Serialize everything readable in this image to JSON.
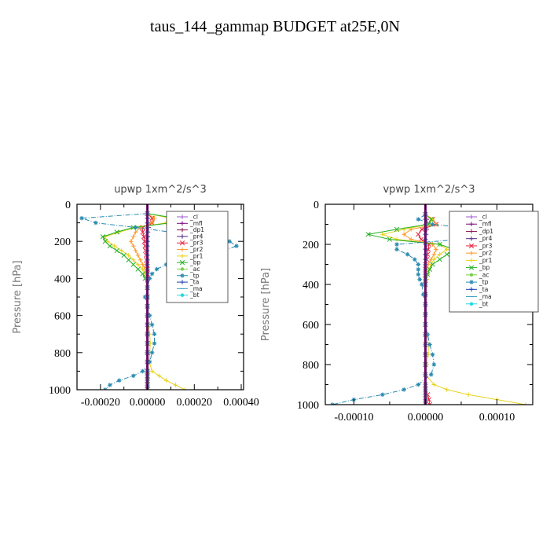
{
  "figure": {
    "title": "taus_144_gammap  BUDGET at25E,0N"
  },
  "chart_data": [
    {
      "type": "line",
      "title": "upwp   1xm^2/s^3",
      "ylabel": "Pressure [hPa]",
      "xlim": [
        -0.0003,
        0.00041
      ],
      "ylim": [
        1000,
        0
      ],
      "xticks": [
        "-0.00020",
        "0.00000",
        "0.00020",
        "0.00040"
      ],
      "xtick_values": [
        -0.0002,
        0,
        0.0002,
        0.0004
      ],
      "yticks": [
        "0",
        "200",
        "400",
        "600",
        "800",
        "1000"
      ],
      "ytick_values": [
        0,
        200,
        400,
        600,
        800,
        1000
      ],
      "legend_position": "top-right",
      "y": [
        50,
        75,
        100,
        125,
        150,
        175,
        200,
        225,
        250,
        275,
        300,
        325,
        350,
        375,
        400,
        450,
        500,
        550,
        600,
        650,
        700,
        750,
        800,
        850,
        900,
        925,
        950,
        975,
        1000
      ],
      "series": [
        {
          "name": "_cl",
          "color": "#9b59d0",
          "marker": "+",
          "values": [
            0,
            0,
            0,
            0,
            0,
            0,
            0,
            0,
            0,
            0,
            0,
            0,
            0,
            0,
            0,
            0,
            0,
            0,
            0,
            0,
            0,
            0,
            0,
            0,
            0,
            0,
            0,
            0,
            0
          ]
        },
        {
          "name": "_mfl",
          "color": "#7a1080",
          "marker": "+",
          "values": [
            0,
            0,
            0,
            0,
            0,
            0,
            0,
            0,
            0,
            0,
            0,
            0,
            0,
            0,
            0,
            0,
            0,
            0,
            0,
            0,
            0,
            0,
            0,
            0,
            0,
            0,
            0,
            0,
            0
          ]
        },
        {
          "name": "_dp1",
          "color": "#8b1a50",
          "marker": "+",
          "values": [
            0,
            2e-06,
            4e-06,
            5e-06,
            3e-06,
            2e-06,
            1e-06,
            0,
            0,
            0,
            0,
            0,
            0,
            0,
            0,
            0,
            0,
            0,
            0,
            0,
            0,
            0,
            0,
            0,
            0,
            0,
            0,
            0,
            0
          ]
        },
        {
          "name": "_pr4",
          "color": "#5a2a8a",
          "marker": "+",
          "values": [
            0,
            0,
            0,
            0,
            0,
            0,
            0,
            0,
            0,
            0,
            0,
            0,
            0,
            0,
            0,
            0,
            0,
            0,
            0,
            0,
            0,
            0,
            0,
            0,
            0,
            0,
            0,
            0,
            0
          ]
        },
        {
          "name": "_pr3",
          "color": "#e8233a",
          "marker": "x",
          "values": [
            0,
            2e-05,
            2e-05,
            -2e-05,
            -2e-05,
            -1.5e-05,
            -1.2e-05,
            -1e-05,
            -8e-06,
            -5e-06,
            -3e-06,
            -2e-06,
            0,
            0,
            0,
            0,
            0,
            0,
            0,
            0,
            0,
            0,
            0,
            0,
            0,
            0,
            0,
            0,
            0
          ]
        },
        {
          "name": "_pr2",
          "color": "#ff9a2a",
          "marker": "+",
          "values": [
            0,
            3e-05,
            2e-05,
            -3e-05,
            -5e-05,
            -6e-05,
            -7e-05,
            -6e-05,
            -5e-05,
            -4e-05,
            -3e-05,
            -2e-05,
            -1e-05,
            0,
            0,
            0,
            0,
            0,
            0,
            0,
            0,
            0,
            0,
            0,
            0,
            0,
            0,
            0,
            0
          ]
        },
        {
          "name": "_pr1",
          "color": "#e8d21a",
          "marker": "+",
          "values": [
            0,
            0.0001,
            8e-05,
            -5e-05,
            -0.00012,
            -0.00018,
            -0.00017,
            -0.00014,
            -0.00011,
            -8e-05,
            -6e-05,
            -4e-05,
            -2e-05,
            -1e-05,
            0,
            0,
            0,
            0,
            0,
            5e-06,
            1e-05,
            1.2e-05,
            1e-05,
            8e-06,
            2e-05,
            5e-05,
            8e-05,
            0.00012,
            0.00016
          ]
        },
        {
          "name": "_bp",
          "color": "#22b022",
          "marker": "x",
          "values": [
            0,
            0.00012,
            0.0001,
            -6e-05,
            -0.00013,
            -0.00019,
            -0.00018,
            -0.00016,
            -0.00013,
            -0.0001,
            -8e-05,
            -6e-05,
            -4e-05,
            -2e-05,
            -1e-05,
            0,
            0,
            0,
            0,
            0,
            0,
            0,
            0,
            0,
            0,
            0,
            0,
            0,
            0
          ]
        },
        {
          "name": "_ac",
          "color": "#7ad04a",
          "marker": "o",
          "values": [
            0,
            0,
            0,
            0,
            0,
            0,
            0,
            0,
            0,
            0,
            0,
            0,
            0,
            0,
            0,
            0,
            0,
            0,
            0,
            0,
            0,
            0,
            0,
            0,
            0,
            0,
            0,
            0,
            0
          ]
        },
        {
          "name": "_tp",
          "color": "#2a8ab0",
          "marker": "*",
          "values": [
            0,
            -0.00028,
            -0.00022,
            -5e-05,
            0.0001,
            0.00025,
            0.00035,
            0.00038,
            0.00032,
            0.00025,
            0.00015,
            8e-05,
            4e-05,
            2e-05,
            1e-05,
            0,
            -1e-05,
            0,
            1e-05,
            2e-05,
            3e-05,
            3e-05,
            2e-05,
            1e-05,
            -2e-05,
            -6e-05,
            -0.00012,
            -0.00016,
            -0.00018
          ]
        },
        {
          "name": "_ta",
          "color": "#1a40b0",
          "marker": "+",
          "values": [
            0,
            0,
            0,
            0,
            0,
            0,
            0,
            0,
            0,
            0,
            0,
            0,
            0,
            0,
            0,
            0,
            0,
            0,
            0,
            0,
            0,
            0,
            0,
            0,
            0,
            0,
            0,
            0,
            0
          ]
        },
        {
          "name": "_ma",
          "color": "#40a0c0",
          "marker": "-",
          "values": [
            0,
            0,
            0,
            0,
            0,
            0,
            0,
            0,
            0,
            0,
            0,
            0,
            0,
            0,
            0,
            0,
            0,
            0,
            0,
            0,
            0,
            0,
            0,
            0,
            0,
            0,
            0,
            0,
            0
          ]
        },
        {
          "name": "_bt",
          "color": "#20d8e0",
          "marker": "o",
          "values": [
            0,
            0,
            0,
            0,
            0,
            0,
            0,
            0,
            0,
            0,
            0,
            0,
            0,
            0,
            0,
            0,
            0,
            0,
            0,
            0,
            0,
            0,
            0,
            0,
            0,
            0,
            0,
            0,
            0
          ]
        }
      ]
    },
    {
      "type": "line",
      "title": "vpwp   1xm^2/s^3",
      "ylabel": "Pressure [hPa]",
      "xlim": [
        -0.00014,
        0.00015
      ],
      "ylim": [
        1000,
        0
      ],
      "xticks": [
        "-0.00010",
        "0.00000",
        "0.00010"
      ],
      "xtick_values": [
        -0.0001,
        0,
        0.0001
      ],
      "yticks": [
        "0",
        "200",
        "400",
        "600",
        "800",
        "1000"
      ],
      "ytick_values": [
        0,
        200,
        400,
        600,
        800,
        1000
      ],
      "legend_position": "top-right",
      "y": [
        50,
        75,
        100,
        125,
        150,
        175,
        200,
        225,
        250,
        275,
        300,
        325,
        350,
        375,
        400,
        450,
        500,
        550,
        600,
        650,
        700,
        750,
        800,
        850,
        900,
        925,
        950,
        975,
        1000
      ],
      "series": [
        {
          "name": "_cl",
          "color": "#9b59d0",
          "marker": "+",
          "values": [
            0,
            0,
            0,
            0,
            0,
            0,
            0,
            0,
            0,
            0,
            0,
            0,
            0,
            0,
            0,
            0,
            0,
            0,
            0,
            0,
            0,
            0,
            0,
            0,
            0,
            0,
            0,
            0,
            0
          ]
        },
        {
          "name": "_mfl",
          "color": "#7a1080",
          "marker": "+",
          "values": [
            0,
            0,
            0,
            0,
            0,
            0,
            0,
            0,
            0,
            0,
            0,
            0,
            0,
            0,
            0,
            0,
            0,
            0,
            0,
            0,
            0,
            0,
            0,
            0,
            0,
            0,
            0,
            0,
            0
          ]
        },
        {
          "name": "_dp1",
          "color": "#8b1a50",
          "marker": "+",
          "values": [
            0,
            2e-06,
            3e-06,
            2e-06,
            1e-06,
            0,
            0,
            0,
            0,
            0,
            0,
            0,
            0,
            0,
            0,
            0,
            0,
            0,
            0,
            0,
            0,
            0,
            0,
            0,
            0,
            0,
            0,
            0,
            0
          ]
        },
        {
          "name": "_pr4",
          "color": "#5a2a8a",
          "marker": "+",
          "values": [
            0,
            0,
            0,
            0,
            0,
            0,
            0,
            0,
            0,
            0,
            0,
            0,
            0,
            0,
            0,
            0,
            0,
            0,
            0,
            0,
            0,
            0,
            0,
            0,
            0,
            0,
            0,
            0,
            0
          ]
        },
        {
          "name": "_pr3",
          "color": "#e8233a",
          "marker": "x",
          "values": [
            0,
            1e-05,
            1.5e-05,
            -5e-06,
            -1e-05,
            -6e-06,
            5e-06,
            4e-06,
            3e-06,
            2e-06,
            0,
            0,
            0,
            0,
            0,
            0,
            0,
            0,
            0,
            0,
            0,
            0,
            0,
            0,
            0,
            0,
            3e-06,
            5e-06,
            6e-06
          ]
        },
        {
          "name": "_pr2",
          "color": "#ff9a2a",
          "marker": "+",
          "values": [
            0,
            1e-05,
            1.5e-05,
            -2e-05,
            -3e-05,
            -2e-05,
            1e-05,
            1.5e-05,
            1.2e-05,
            8e-06,
            4e-06,
            2e-06,
            0,
            0,
            0,
            0,
            0,
            0,
            0,
            0,
            0,
            0,
            0,
            0,
            0,
            0,
            0,
            0,
            0
          ]
        },
        {
          "name": "_pr1",
          "color": "#e8d21a",
          "marker": "+",
          "values": [
            0,
            1e-05,
            5e-06,
            -3e-05,
            -6e-05,
            -4e-05,
            2e-05,
            3e-05,
            2e-05,
            1.2e-05,
            8e-06,
            5e-06,
            3e-06,
            2e-06,
            0,
            0,
            0,
            0,
            0,
            2e-06,
            4e-06,
            4e-06,
            2e-06,
            0,
            1.2e-05,
            3e-05,
            6e-05,
            0.0001,
            0.00014
          ]
        },
        {
          "name": "_bp",
          "color": "#22b022",
          "marker": "x",
          "values": [
            0,
            8e-06,
            4e-06,
            -4e-05,
            -8e-05,
            -5e-05,
            2e-05,
            4e-05,
            3e-05,
            2e-05,
            1e-05,
            6e-06,
            3e-06,
            0,
            0,
            0,
            0,
            0,
            0,
            0,
            0,
            0,
            0,
            0,
            0,
            0,
            0,
            0,
            0
          ]
        },
        {
          "name": "_ac",
          "color": "#7ad04a",
          "marker": "o",
          "values": [
            0,
            0,
            0,
            0,
            0,
            0,
            0,
            0,
            0,
            0,
            0,
            0,
            0,
            0,
            0,
            0,
            0,
            0,
            0,
            0,
            0,
            0,
            0,
            0,
            0,
            0,
            0,
            0,
            0
          ]
        },
        {
          "name": "_tp",
          "color": "#2a8ab0",
          "marker": "*",
          "values": [
            0,
            -1e-05,
            1e-05,
            8e-05,
            0.00013,
            5e-05,
            -4e-05,
            -4e-05,
            -2.5e-05,
            -1.5e-05,
            -1e-05,
            -1e-05,
            -1e-05,
            -8e-06,
            -5e-06,
            -3e-06,
            0,
            0,
            0,
            3e-06,
            6e-06,
            1e-05,
            1.2e-05,
            8e-06,
            -1e-05,
            -3e-05,
            -6e-05,
            -0.0001,
            -0.00013
          ]
        },
        {
          "name": "_ta",
          "color": "#1a40b0",
          "marker": "+",
          "values": [
            0,
            0,
            0,
            0,
            0,
            0,
            0,
            0,
            0,
            0,
            0,
            0,
            0,
            0,
            0,
            0,
            0,
            0,
            0,
            0,
            0,
            0,
            0,
            0,
            0,
            0,
            0,
            0,
            0
          ]
        },
        {
          "name": "_ma",
          "color": "#40a0c0",
          "marker": "-",
          "values": [
            0,
            0,
            0,
            0,
            0,
            0,
            0,
            0,
            0,
            0,
            0,
            0,
            0,
            0,
            0,
            0,
            0,
            0,
            0,
            0,
            0,
            0,
            0,
            0,
            0,
            0,
            0,
            0,
            0
          ]
        },
        {
          "name": "_bt",
          "color": "#20d8e0",
          "marker": "o",
          "values": [
            0,
            0,
            0,
            0,
            0,
            0,
            0,
            0,
            0,
            0,
            0,
            0,
            0,
            0,
            0,
            0,
            0,
            0,
            0,
            0,
            0,
            0,
            0,
            0,
            0,
            0,
            0,
            0,
            0
          ]
        }
      ]
    }
  ]
}
